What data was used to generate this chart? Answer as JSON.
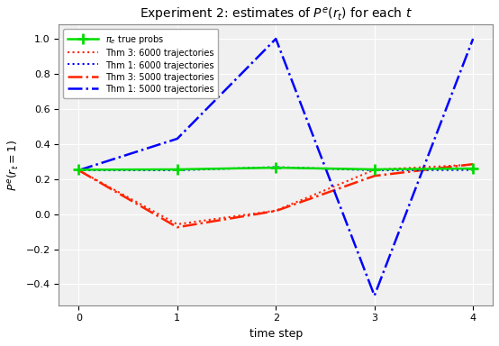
{
  "title": "Experiment 2: estimates of $P^e(r_t)$ for each $t$",
  "xlabel": "time step",
  "ylabel": "$P^e(r_t = 1)$",
  "xlim": [
    -0.2,
    4.2
  ],
  "ylim": [
    -0.52,
    1.08
  ],
  "xticks": [
    0,
    1,
    2,
    3,
    4
  ],
  "yticks": [
    -0.4,
    -0.2,
    0.0,
    0.2,
    0.4,
    0.6,
    0.8,
    1.0
  ],
  "t": [
    0,
    1,
    2,
    3,
    4
  ],
  "green_true": [
    0.253,
    0.255,
    0.265,
    0.255,
    0.26
  ],
  "red_dot_6000": [
    0.25,
    -0.058,
    0.02,
    0.253,
    0.282
  ],
  "blue_dot_6000": [
    0.25,
    0.25,
    0.268,
    0.25,
    0.252
  ],
  "red_dashdot_5000": [
    0.25,
    -0.075,
    0.018,
    0.218,
    0.285
  ],
  "blue_dashdot_5000": [
    0.25,
    0.43,
    1.0,
    -0.465,
    1.0
  ],
  "green_color": "#00dd00",
  "red_color": "#ff2200",
  "blue_color": "#0000ff",
  "legend_labels": [
    "$\\pi_e$ true probs",
    "Thm 3: 6000 trajectories",
    "Thm 1: 6000 trajectories",
    "Thm 3: 5000 trajectories",
    "Thm 1: 5000 trajectories"
  ],
  "figsize": [
    5.54,
    3.84
  ],
  "dpi": 100,
  "title_fontsize": 10,
  "label_fontsize": 9,
  "legend_fontsize": 7,
  "tick_fontsize": 8
}
